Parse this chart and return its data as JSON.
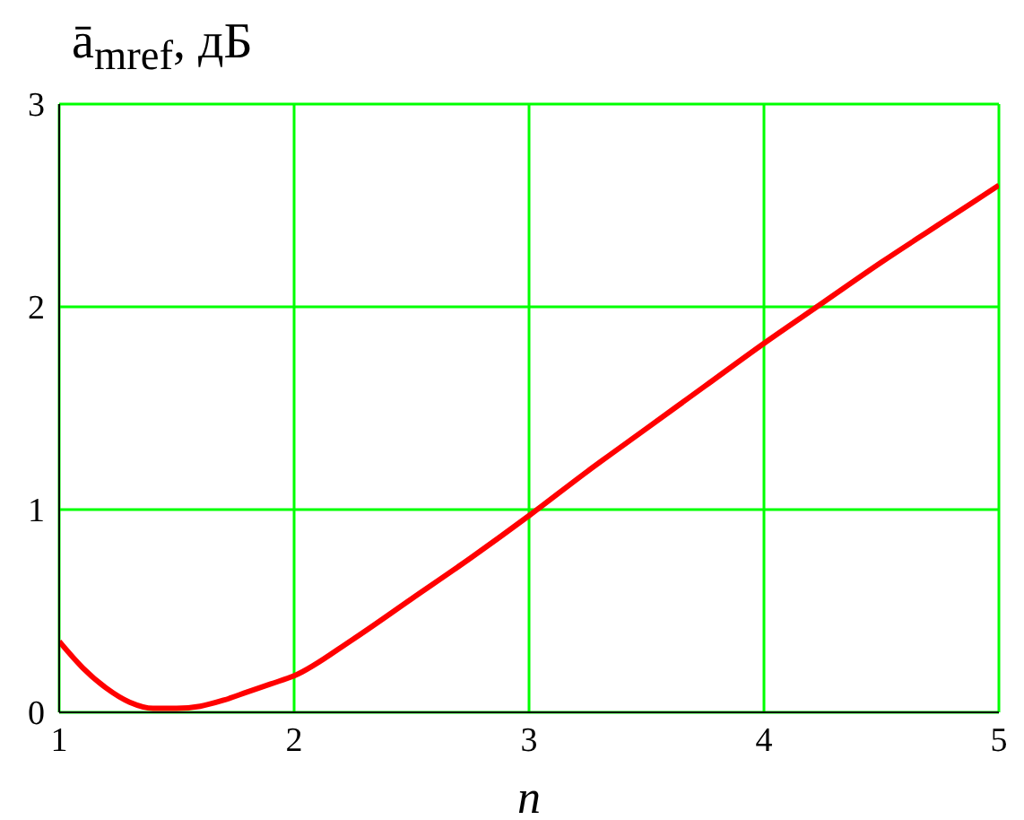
{
  "chart_data": {
    "type": "line",
    "ylabel": "ā$_{mref}$, дБ",
    "xlabel": "n",
    "x": [
      1,
      1.1,
      1.2,
      1.3,
      1.4,
      1.5,
      1.6,
      1.7,
      1.8,
      1.9,
      2,
      2.25,
      2.5,
      2.75,
      3,
      3.25,
      3.5,
      3.75,
      4,
      4.25,
      4.5,
      4.75,
      5
    ],
    "series": [
      {
        "color": "#ff0000",
        "values": [
          0.35,
          0.22,
          0.12,
          0.05,
          0.02,
          0.02,
          0.03,
          0.06,
          0.1,
          0.14,
          0.18,
          0.36,
          0.56,
          0.76,
          0.97,
          1.19,
          1.4,
          1.61,
          1.82,
          2.02,
          2.22,
          2.41,
          2.6
        ]
      }
    ],
    "xlim": [
      1,
      5
    ],
    "ylim": [
      0,
      3
    ],
    "xticks": [
      1,
      2,
      3,
      4,
      5
    ],
    "yticks": [
      0,
      1,
      2,
      3
    ],
    "grid": true,
    "marker": "none",
    "line_style": "solid"
  }
}
